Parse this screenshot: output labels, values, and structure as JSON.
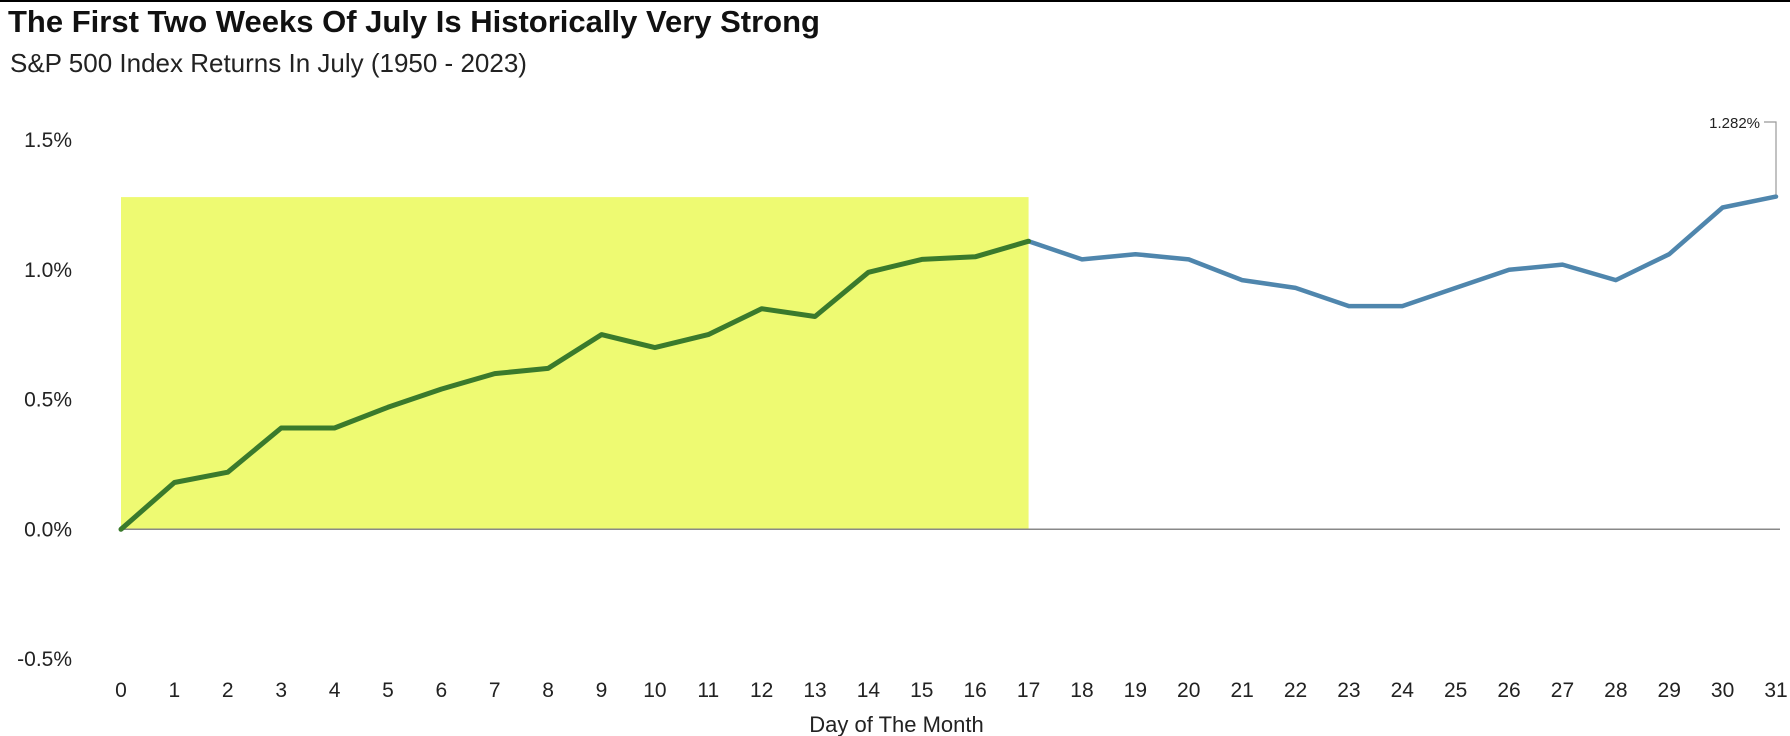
{
  "chart_data": {
    "type": "line",
    "title": "The First Two Weeks Of July Is Historically Very Strong",
    "subtitle": "S&P 500 Index Returns In July (1950 - 2023)",
    "xlabel": "Day of The Month",
    "ylabel": "",
    "x": [
      0,
      1,
      2,
      3,
      4,
      5,
      6,
      7,
      8,
      9,
      10,
      11,
      12,
      13,
      14,
      15,
      16,
      17,
      18,
      19,
      20,
      21,
      22,
      23,
      24,
      25,
      26,
      27,
      28,
      29,
      30,
      31
    ],
    "values": [
      0.0,
      0.18,
      0.22,
      0.39,
      0.39,
      0.47,
      0.54,
      0.6,
      0.62,
      0.75,
      0.7,
      0.75,
      0.85,
      0.82,
      0.99,
      1.04,
      1.05,
      1.11,
      1.04,
      1.06,
      1.04,
      0.96,
      0.93,
      0.86,
      0.86,
      0.93,
      1.0,
      1.02,
      0.96,
      1.06,
      1.24,
      1.282
    ],
    "ylim": [
      -0.5,
      1.5
    ],
    "yticks": [
      1.5,
      1.0,
      0.5,
      0.0,
      -0.5
    ],
    "ytick_labels": [
      "1.5%",
      "1.0%",
      "0.5%",
      "0.0%",
      "-0.5%"
    ],
    "highlight": {
      "from_day": 0,
      "to_day": 17,
      "top_value": 1.28,
      "color": "#eefa72"
    },
    "highlight_line_color": "#3a7a2c",
    "line_color": "#4f86ad",
    "annotation": {
      "text": "1.282%",
      "day": 31,
      "value": 1.282
    },
    "grid": false
  }
}
